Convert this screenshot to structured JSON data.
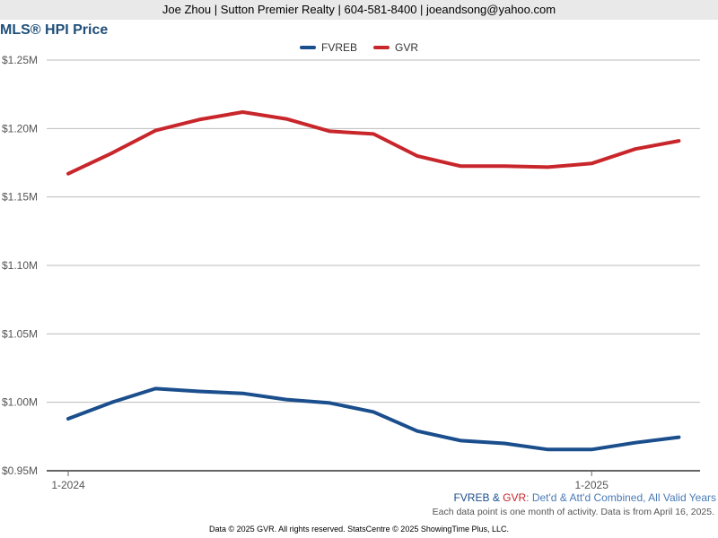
{
  "header": {
    "contact": "Joe Zhou | Sutton Premier Realty | 604-581-8400 | joeandsong@yahoo.com"
  },
  "chart_data": {
    "type": "line",
    "title": "MLS® HPI Price",
    "x_tick_labels": [
      "1-2024",
      "1-2025"
    ],
    "x": [
      "2024-01",
      "2024-02",
      "2024-03",
      "2024-04",
      "2024-05",
      "2024-06",
      "2024-07",
      "2024-08",
      "2024-09",
      "2024-10",
      "2024-11",
      "2024-12",
      "2025-01",
      "2025-02",
      "2025-03"
    ],
    "y_ticks": [
      "$0.95M",
      "$1.00M",
      "$1.05M",
      "$1.10M",
      "$1.15M",
      "$1.20M",
      "$1.25M"
    ],
    "ylim": [
      950000,
      1250000
    ],
    "grid": true,
    "legend_position": "top-center",
    "series": [
      {
        "name": "FVREB",
        "color": "#1a4e8c",
        "values": [
          988000,
          1000000,
          1010000,
          1008000,
          1006500,
          1002000,
          999500,
          993000,
          979000,
          972000,
          970000,
          965500,
          965500,
          970500,
          974500
        ]
      },
      {
        "name": "GVR",
        "color": "#c8262b",
        "values": [
          1167000,
          1182000,
          1198500,
          1206500,
          1212000,
          1207000,
          1198000,
          1196000,
          1180000,
          1172500,
          1172500,
          1171800,
          1174500,
          1185000,
          1191000
        ]
      }
    ]
  },
  "subtitle": {
    "fvreb": "FVREB",
    "amp": " & ",
    "gvr": "GVR",
    "rest": ": Det'd & Att'd Combined, All Valid Years"
  },
  "note": "Each data point is one month of activity. Data is from April 16, 2025.",
  "footer": "Data © 2025 GVR. All rights reserved. StatsCentre © 2025 ShowingTime Plus, LLC."
}
